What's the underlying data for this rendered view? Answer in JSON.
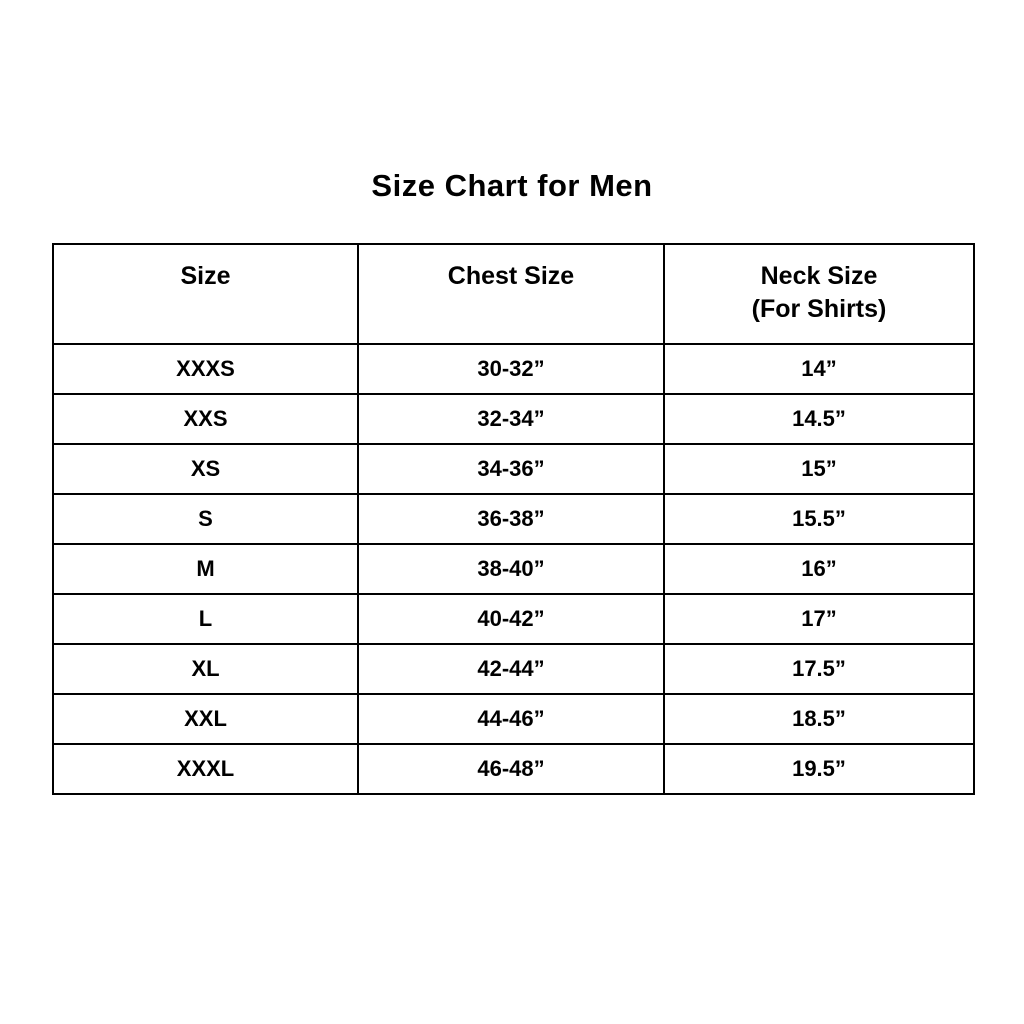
{
  "title": "Size Chart for Men",
  "table": {
    "headers": {
      "size": "Size",
      "chest": "Chest Size",
      "neck_line1": "Neck Size",
      "neck_line2": "(For Shirts)"
    },
    "rows": [
      [
        "XXXS",
        "30-32”",
        "14”"
      ],
      [
        "XXS",
        "32-34”",
        "14.5”"
      ],
      [
        "XS",
        "34-36”",
        "15”"
      ],
      [
        "S",
        "36-38”",
        "15.5”"
      ],
      [
        "M",
        "38-40”",
        "16”"
      ],
      [
        "L",
        "40-42”",
        "17”"
      ],
      [
        "XL",
        "42-44”",
        "17.5”"
      ],
      [
        "XXL",
        "44-46”",
        "18.5”"
      ],
      [
        "XXXL",
        "46-48”",
        "19.5”"
      ]
    ]
  },
  "chart_data": {
    "type": "table",
    "title": "Size Chart for Men",
    "columns": [
      "Size",
      "Chest Size",
      "Neck Size (For Shirts)"
    ],
    "rows": [
      [
        "XXXS",
        "30-32”",
        "14”"
      ],
      [
        "XXS",
        "32-34”",
        "14.5”"
      ],
      [
        "XS",
        "34-36”",
        "15”"
      ],
      [
        "S",
        "36-38”",
        "15.5”"
      ],
      [
        "M",
        "38-40”",
        "16”"
      ],
      [
        "L",
        "40-42”",
        "17”"
      ],
      [
        "XL",
        "42-44”",
        "17.5”"
      ],
      [
        "XXL",
        "44-46”",
        "18.5”"
      ],
      [
        "XXXL",
        "46-48”",
        "19.5”"
      ]
    ],
    "colors": {
      "text": "#000000",
      "border": "#000000",
      "background": "#ffffff"
    }
  }
}
